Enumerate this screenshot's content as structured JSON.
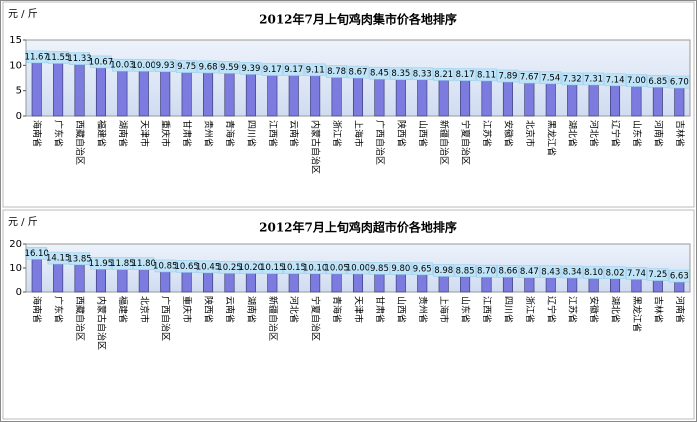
{
  "chart_data": [
    {
      "type": "bar",
      "title": "2012年7月上旬鸡肉集市价各地排序",
      "y_label": "元 / 斤",
      "categories": [
        "海南省",
        "广东省",
        "西藏自治区",
        "福建省",
        "湖南省",
        "天津市",
        "重庆市",
        "甘肃省",
        "贵州省",
        "青海省",
        "四川省",
        "江西省",
        "云南省",
        "内蒙古自治区",
        "浙江省",
        "上海市",
        "广西自治区",
        "陕西省",
        "山西省",
        "新疆自治区",
        "宁夏自治区",
        "江苏省",
        "安徽省",
        "北京市",
        "黑龙江省",
        "湖北省",
        "河北省",
        "辽宁省",
        "山东省",
        "河南省",
        "吉林省"
      ],
      "values": [
        11.67,
        11.55,
        11.33,
        10.67,
        10.03,
        10.0,
        9.93,
        9.75,
        9.68,
        9.59,
        9.39,
        9.17,
        9.17,
        9.11,
        8.78,
        8.67,
        8.45,
        8.35,
        8.33,
        8.21,
        8.17,
        8.11,
        7.89,
        7.67,
        7.54,
        7.32,
        7.31,
        7.14,
        7.0,
        6.85,
        6.7
      ],
      "value_labels": [
        "11.67",
        "11.55",
        "11.33",
        "10.67",
        "10.03",
        "10.00",
        "9.93",
        "9.75",
        "9.68",
        "9.59",
        "9.39",
        "9.17",
        "9.17",
        "9.11",
        "8.78",
        "8.67",
        "8.45",
        "8.35",
        "8.33",
        "8.21",
        "8.17",
        "8.11",
        "7.89",
        "7.67",
        "7.54",
        "7.32",
        "7.31",
        "7.14",
        "7.00",
        "6.85",
        "6.70"
      ],
      "color": "#7b7be0",
      "ylim": [
        0,
        15
      ],
      "yticks": [
        0,
        5,
        10,
        15
      ],
      "grid": false
    },
    {
      "type": "bar",
      "title": "2012年7月上旬鸡肉超市价各地排序",
      "y_label": "元 / 斤",
      "categories": [
        "海南省",
        "广东省",
        "西藏自治区",
        "内蒙古自治区",
        "福建省",
        "北京市",
        "广西自治区",
        "重庆市",
        "陕西省",
        "云南省",
        "湖南省",
        "新疆自治区",
        "河北省",
        "宁夏自治区",
        "青海省",
        "天津市",
        "甘肃省",
        "山西省",
        "贵州省",
        "上海市",
        "山东省",
        "江西省",
        "四川省",
        "浙江省",
        "辽宁省",
        "江苏省",
        "安徽省",
        "湖北省",
        "黑龙江省",
        "吉林省",
        "河南省"
      ],
      "values": [
        16.1,
        14.15,
        13.85,
        11.95,
        11.85,
        11.8,
        10.85,
        10.65,
        10.45,
        10.25,
        10.2,
        10.15,
        10.15,
        10.1,
        10.05,
        10.0,
        9.85,
        9.8,
        9.65,
        8.98,
        8.85,
        8.7,
        8.66,
        8.47,
        8.43,
        8.34,
        8.1,
        8.02,
        7.74,
        7.25,
        6.63
      ],
      "value_labels": [
        "16.10",
        "14.15",
        "13.85",
        "11.95",
        "11.85",
        "11.80",
        "10.85",
        "10.65",
        "10.45",
        "10.25",
        "10.20",
        "10.15",
        "10.15",
        "10.10",
        "10.05",
        "10.00",
        "9.85",
        "9.80",
        "9.65",
        "8.98",
        "8.85",
        "8.70",
        "8.66",
        "8.47",
        "8.43",
        "8.34",
        "8.10",
        "8.02",
        "7.74",
        "7.25",
        "6.63"
      ],
      "color": "#7b7be0",
      "ylim": [
        0,
        20
      ],
      "yticks": [
        0,
        10,
        20
      ],
      "grid": false
    }
  ]
}
